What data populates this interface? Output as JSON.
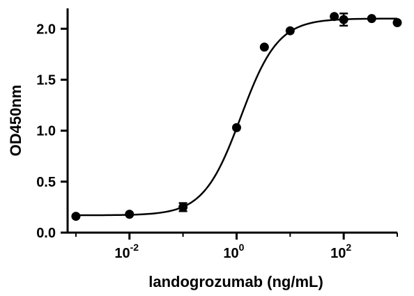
{
  "chart_data": {
    "type": "scatter",
    "title": "",
    "xlabel": "landogrozumab (ng/mL)",
    "ylabel": "OD450nm",
    "x_scale": "log",
    "xlim": [
      0.0007,
      1000
    ],
    "ylim": [
      0,
      2.2
    ],
    "y_ticks": [
      0.0,
      0.5,
      1.0,
      1.5,
      2.0
    ],
    "y_tick_labels": [
      "0.0",
      "0.5",
      "1.0",
      "1.5",
      "2.0"
    ],
    "x_tick_labels": [
      {
        "value": 0.01,
        "base": "10",
        "exp": "-2"
      },
      {
        "value": 1,
        "base": "10",
        "exp": "0"
      },
      {
        "value": 100,
        "base": "10",
        "exp": "2"
      }
    ],
    "grid": false,
    "legend": "none",
    "series": [
      {
        "x": [
          0.001,
          0.01,
          0.1,
          1,
          3.3,
          10,
          66.7,
          100,
          333,
          1000
        ],
        "y": [
          0.16,
          0.18,
          0.25,
          1.03,
          1.82,
          1.98,
          2.12,
          2.09,
          2.1,
          2.06
        ],
        "err": [
          0.0,
          0.0,
          0.04,
          0.0,
          0.0,
          0.0,
          0.0,
          0.06,
          0.0,
          0.0
        ]
      }
    ],
    "fit": {
      "model": "4PL",
      "bottom": 0.17,
      "top": 2.1,
      "ec50": 1.2,
      "hill": 1.25
    },
    "colors": {
      "points": "#000000",
      "curve": "#000000",
      "axes": "#000000"
    }
  }
}
